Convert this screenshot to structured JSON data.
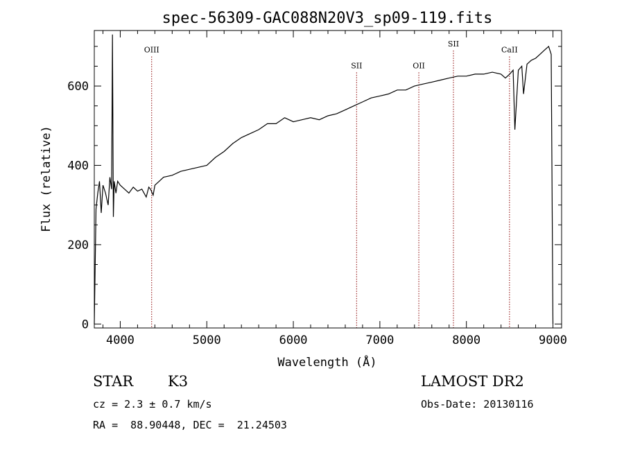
{
  "chart_data": {
    "type": "line",
    "title": "spec-56309-GAC088N20V3_sp09-119.fits",
    "xlabel": "Wavelength (Å)",
    "ylabel": "Flux (relative)",
    "xlim": [
      3700,
      9100
    ],
    "ylim": [
      -10,
      740
    ],
    "xticks": [
      4000,
      5000,
      6000,
      7000,
      8000,
      9000
    ],
    "yticks": [
      0,
      200,
      400,
      600
    ],
    "grid": false,
    "series": [
      {
        "x": [
          3700,
          3720,
          3740,
          3760,
          3780,
          3800,
          3830,
          3860,
          3880,
          3900,
          3910,
          3920,
          3930,
          3950,
          3970,
          4000,
          4050,
          4100,
          4150,
          4200,
          4250,
          4300,
          4330,
          4350,
          4380,
          4400,
          4450,
          4500,
          4600,
          4700,
          4800,
          4900,
          5000,
          5100,
          5200,
          5300,
          5400,
          5500,
          5600,
          5700,
          5800,
          5900,
          6000,
          6100,
          6200,
          6300,
          6400,
          6500,
          6600,
          6700,
          6800,
          6900,
          7000,
          7100,
          7200,
          7300,
          7400,
          7500,
          7600,
          7700,
          7800,
          7900,
          8000,
          8100,
          8200,
          8300,
          8400,
          8450,
          8500,
          8540,
          8560,
          8600,
          8640,
          8660,
          8700,
          8750,
          8800,
          8850,
          8900,
          8950,
          8980,
          9000
        ],
        "y": [
          0,
          290,
          330,
          360,
          280,
          350,
          330,
          300,
          370,
          340,
          730,
          270,
          360,
          330,
          360,
          350,
          340,
          330,
          345,
          335,
          340,
          320,
          345,
          340,
          325,
          350,
          360,
          370,
          375,
          385,
          390,
          395,
          400,
          420,
          435,
          455,
          470,
          480,
          490,
          505,
          505,
          520,
          510,
          515,
          520,
          515,
          525,
          530,
          540,
          550,
          560,
          570,
          575,
          580,
          590,
          590,
          600,
          605,
          610,
          615,
          620,
          625,
          625,
          630,
          630,
          635,
          630,
          620,
          630,
          640,
          490,
          640,
          650,
          580,
          655,
          665,
          670,
          680,
          690,
          700,
          680,
          0
        ]
      }
    ],
    "lines": [
      {
        "label": "OIII",
        "x": 4363,
        "label_y": 685
      },
      {
        "label": "SII",
        "x": 6731,
        "label_y": 645
      },
      {
        "label": "OII",
        "x": 7450,
        "label_y": 645
      },
      {
        "label": "SII",
        "x": 7850,
        "label_y": 700
      },
      {
        "label": "CaII",
        "x": 8498,
        "label_y": 685
      }
    ]
  },
  "info": {
    "class_label": "STAR",
    "subclass": "K3",
    "survey": "LAMOST DR2",
    "cz_line": "cz = 2.3 ± 0.7 km/s",
    "obs_date": "Obs-Date: 20130116",
    "coords": "RA =  88.90448, DEC =  21.24503"
  },
  "colors": {
    "spectrum": "#000000",
    "line_marker": "#8b0000"
  }
}
